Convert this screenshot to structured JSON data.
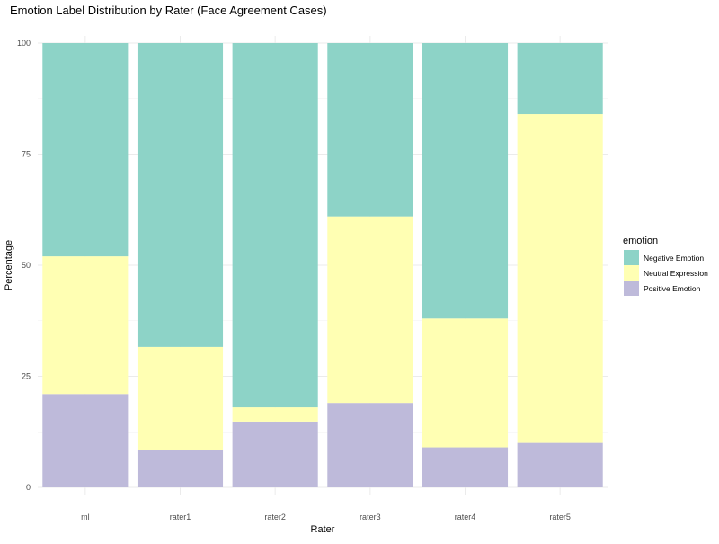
{
  "chart_data": {
    "type": "bar",
    "stacked": true,
    "title": "Emotion Label Distribution by Rater (Face Agreement Cases)",
    "xlabel": "Rater",
    "ylabel": "Percentage",
    "categories": [
      "ml",
      "rater1",
      "rater2",
      "rater3",
      "rater4",
      "rater5"
    ],
    "ylim": [
      0,
      100
    ],
    "yticks": [
      0,
      25,
      50,
      75,
      100
    ],
    "grid": true,
    "legend": {
      "title": "emotion",
      "position": "right"
    },
    "series": [
      {
        "name": "Positive Emotion",
        "color": "#bebada",
        "values": [
          21,
          8.3,
          14.8,
          19,
          9,
          10
        ]
      },
      {
        "name": "Neutral Expression",
        "color": "#ffffb3",
        "values": [
          31,
          23.3,
          3.2,
          42,
          29,
          74
        ]
      },
      {
        "name": "Negative Emotion",
        "color": "#8dd3c7",
        "values": [
          48,
          68.4,
          82,
          39,
          62,
          16
        ]
      }
    ]
  }
}
